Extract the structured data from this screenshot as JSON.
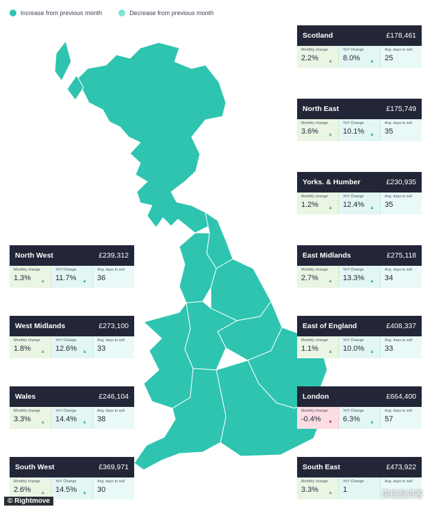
{
  "legend": {
    "increase": {
      "label": "Increase from previous month",
      "color": "#2ec4b0"
    },
    "decrease": {
      "label": "Decrease from previous month",
      "color": "#7ee6d6"
    }
  },
  "captions": {
    "monthly": "Monthly change",
    "yoy": "YoY Change",
    "days": "Avg. days to sell"
  },
  "regions": [
    {
      "name": "Scotland",
      "price": "£178,461",
      "monthly": "2.2%",
      "yoy": "8.0%",
      "days": "25",
      "direction": "up"
    },
    {
      "name": "North East",
      "price": "£175,749",
      "monthly": "3.6%",
      "yoy": "10.1%",
      "days": "35",
      "direction": "up"
    },
    {
      "name": "Yorks. & Humber",
      "price": "£230,935",
      "monthly": "1.2%",
      "yoy": "12.4%",
      "days": "35",
      "direction": "up"
    },
    {
      "name": "East Midlands",
      "price": "£275,118",
      "monthly": "2.7%",
      "yoy": "13.3%",
      "days": "34",
      "direction": "up"
    },
    {
      "name": "East of England",
      "price": "£408,337",
      "monthly": "1.1%",
      "yoy": "10.0%",
      "days": "33",
      "direction": "up"
    },
    {
      "name": "London",
      "price": "£664,400",
      "monthly": "-0.4%",
      "yoy": "6.3%",
      "days": "57",
      "direction": "down"
    },
    {
      "name": "South East",
      "price": "£473,922",
      "monthly": "3.3%",
      "yoy": "1",
      "days": "",
      "direction": "up"
    },
    {
      "name": "North West",
      "price": "£239,312",
      "monthly": "1.3%",
      "yoy": "11.7%",
      "days": "36",
      "direction": "up"
    },
    {
      "name": "West Midlands",
      "price": "£273,100",
      "monthly": "1.8%",
      "yoy": "12.6%",
      "days": "33",
      "direction": "up"
    },
    {
      "name": "Wales",
      "price": "£246,104",
      "monthly": "3.3%",
      "yoy": "14.4%",
      "days": "38",
      "direction": "up"
    },
    {
      "name": "South West",
      "price": "£369,971",
      "monthly": "2.6%",
      "yoy": "14.5%",
      "days": "30",
      "direction": "up"
    }
  ],
  "footer": "© Rightmove",
  "watermark": "英伦投资客"
}
